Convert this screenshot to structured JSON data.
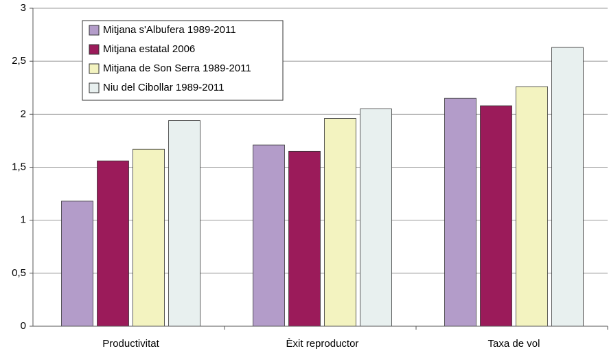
{
  "chart_data": {
    "type": "bar",
    "categories": [
      "Productivitat",
      "Èxit reproductor",
      "Taxa de vol"
    ],
    "series": [
      {
        "name": "Mitjana s'Albufera 1989-2011",
        "color": "#b39cc9",
        "values": [
          1.18,
          1.71,
          2.15
        ]
      },
      {
        "name": "Mitjana estatal 2006",
        "color": "#9b1b5a",
        "values": [
          1.56,
          1.65,
          2.08
        ]
      },
      {
        "name": "Mitjana de Son Serra 1989-2011",
        "color": "#f3f3c0",
        "values": [
          1.67,
          1.96,
          2.26
        ]
      },
      {
        "name": "Niu del Cibollar 1989-2011",
        "color": "#e8f0ef",
        "values": [
          1.94,
          2.05,
          2.63
        ]
      }
    ],
    "ylim": [
      0,
      3
    ],
    "yticks": [
      0,
      {
        "value": 0.5,
        "label": "0,5"
      },
      1,
      {
        "value": 1.5,
        "label": "1,5"
      },
      2,
      {
        "value": 2.5,
        "label": "2,5"
      },
      3
    ],
    "grid": true,
    "legend": "upper left"
  }
}
